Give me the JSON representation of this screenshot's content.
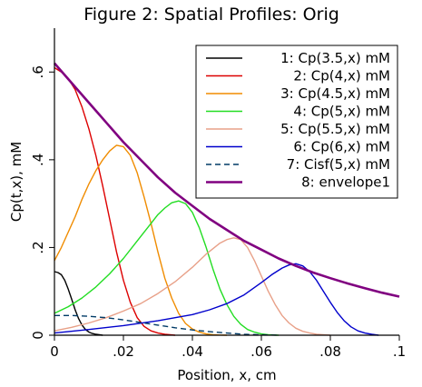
{
  "chart_data": {
    "type": "line",
    "title": "Figure 2: Spatial Profiles: Orig",
    "xlabel": "Position, x, cm",
    "ylabel": "Cp(t,x), mM",
    "xlim": [
      0,
      0.1
    ],
    "ylim": [
      0,
      0.7
    ],
    "xticks": [
      {
        "value": 0,
        "label": "0"
      },
      {
        "value": 0.02,
        "label": ".02"
      },
      {
        "value": 0.04,
        "label": ".04"
      },
      {
        "value": 0.06,
        "label": ".06"
      },
      {
        "value": 0.08,
        "label": ".08"
      },
      {
        "value": 0.1,
        "label": ".1"
      }
    ],
    "yticks": [
      {
        "value": 0,
        "label": "0"
      },
      {
        "value": 0.2,
        "label": ".2"
      },
      {
        "value": 0.4,
        "label": ".4"
      },
      {
        "value": 0.6,
        "label": ".6"
      }
    ],
    "grid": false,
    "legend_position": "top-right",
    "series": [
      {
        "name": "1: Cp(3.5,x) mM",
        "color": "#000000",
        "dash": "solid",
        "x": [
          0,
          0.001,
          0.002,
          0.003,
          0.004,
          0.005,
          0.006,
          0.007,
          0.008,
          0.009,
          0.01,
          0.011,
          0.012,
          0.013,
          0.014
        ],
        "y": [
          0.145,
          0.143,
          0.138,
          0.125,
          0.105,
          0.082,
          0.058,
          0.038,
          0.023,
          0.013,
          0.007,
          0.004,
          0.002,
          0.001,
          0
        ]
      },
      {
        "name": "2: Cp(4,x) mM",
        "color": "#dd0000",
        "dash": "solid",
        "x": [
          0,
          0.002,
          0.004,
          0.006,
          0.008,
          0.01,
          0.012,
          0.014,
          0.016,
          0.018,
          0.02,
          0.022,
          0.024,
          0.026,
          0.028,
          0.03,
          0.032,
          0.035
        ],
        "y": [
          0.61,
          0.6,
          0.585,
          0.56,
          0.52,
          0.47,
          0.41,
          0.34,
          0.265,
          0.19,
          0.125,
          0.075,
          0.04,
          0.02,
          0.01,
          0.005,
          0.002,
          0
        ]
      },
      {
        "name": "3: Cp(4.5,x) mM",
        "color": "#f08c00",
        "dash": "solid",
        "x": [
          0,
          0.002,
          0.004,
          0.006,
          0.008,
          0.01,
          0.012,
          0.014,
          0.016,
          0.018,
          0.02,
          0.022,
          0.024,
          0.026,
          0.028,
          0.03,
          0.032,
          0.034,
          0.036,
          0.038,
          0.04,
          0.042,
          0.044,
          0.046,
          0.048,
          0.05
        ],
        "y": [
          0.17,
          0.2,
          0.235,
          0.27,
          0.31,
          0.345,
          0.375,
          0.4,
          0.42,
          0.433,
          0.43,
          0.41,
          0.37,
          0.315,
          0.255,
          0.19,
          0.13,
          0.085,
          0.05,
          0.027,
          0.014,
          0.007,
          0.003,
          0.001,
          0.0005,
          0
        ]
      },
      {
        "name": "4: Cp(5,x) mM",
        "color": "#22dd22",
        "dash": "solid",
        "x": [
          0,
          0.004,
          0.008,
          0.012,
          0.016,
          0.02,
          0.024,
          0.028,
          0.03,
          0.032,
          0.034,
          0.036,
          0.038,
          0.04,
          0.042,
          0.044,
          0.046,
          0.048,
          0.05,
          0.052,
          0.054,
          0.056,
          0.058,
          0.06,
          0.062,
          0.065
        ],
        "y": [
          0.05,
          0.065,
          0.085,
          0.11,
          0.14,
          0.175,
          0.215,
          0.255,
          0.275,
          0.29,
          0.302,
          0.306,
          0.3,
          0.28,
          0.245,
          0.2,
          0.15,
          0.105,
          0.07,
          0.043,
          0.025,
          0.013,
          0.007,
          0.003,
          0.001,
          0
        ]
      },
      {
        "name": "5: Cp(5.5,x) mM",
        "color": "#e8a088",
        "dash": "solid",
        "x": [
          0,
          0.005,
          0.01,
          0.015,
          0.02,
          0.025,
          0.03,
          0.035,
          0.04,
          0.044,
          0.048,
          0.05,
          0.052,
          0.054,
          0.056,
          0.058,
          0.06,
          0.062,
          0.064,
          0.066,
          0.068,
          0.07,
          0.072,
          0.074,
          0.076,
          0.078,
          0.08
        ],
        "y": [
          0.01,
          0.018,
          0.028,
          0.04,
          0.055,
          0.072,
          0.095,
          0.122,
          0.155,
          0.185,
          0.21,
          0.218,
          0.222,
          0.218,
          0.2,
          0.17,
          0.135,
          0.1,
          0.07,
          0.045,
          0.028,
          0.016,
          0.009,
          0.005,
          0.002,
          0.001,
          0
        ]
      },
      {
        "name": "6: Cp(6,x) mM",
        "color": "#0000cc",
        "dash": "solid",
        "x": [
          0,
          0.01,
          0.02,
          0.03,
          0.04,
          0.045,
          0.05,
          0.055,
          0.06,
          0.063,
          0.066,
          0.068,
          0.07,
          0.072,
          0.074,
          0.076,
          0.078,
          0.08,
          0.082,
          0.084,
          0.086,
          0.088,
          0.09,
          0.092,
          0.094
        ],
        "y": [
          0.005,
          0.013,
          0.022,
          0.033,
          0.047,
          0.058,
          0.072,
          0.092,
          0.12,
          0.138,
          0.153,
          0.16,
          0.163,
          0.158,
          0.145,
          0.125,
          0.1,
          0.075,
          0.052,
          0.033,
          0.019,
          0.01,
          0.005,
          0.002,
          0
        ]
      },
      {
        "name": "7: Cisf(5,x) mM",
        "color": "#003a66",
        "dash": "dashed",
        "x": [
          0,
          0.005,
          0.01,
          0.015,
          0.02,
          0.025,
          0.03,
          0.035,
          0.04,
          0.045,
          0.05,
          0.055,
          0.06,
          0.065
        ],
        "y": [
          0.045,
          0.045,
          0.043,
          0.04,
          0.035,
          0.029,
          0.023,
          0.017,
          0.012,
          0.008,
          0.005,
          0.002,
          0.001,
          0
        ]
      },
      {
        "name": "8: envelope1",
        "color": "#800080",
        "dash": "solid",
        "x": [
          0,
          0.005,
          0.01,
          0.015,
          0.02,
          0.025,
          0.03,
          0.035,
          0.04,
          0.045,
          0.05,
          0.055,
          0.06,
          0.065,
          0.07,
          0.075,
          0.08,
          0.085,
          0.09,
          0.095,
          0.1
        ],
        "y": [
          0.62,
          0.575,
          0.53,
          0.485,
          0.44,
          0.4,
          0.36,
          0.325,
          0.295,
          0.265,
          0.24,
          0.215,
          0.195,
          0.175,
          0.158,
          0.143,
          0.13,
          0.118,
          0.107,
          0.097,
          0.088
        ]
      }
    ]
  }
}
